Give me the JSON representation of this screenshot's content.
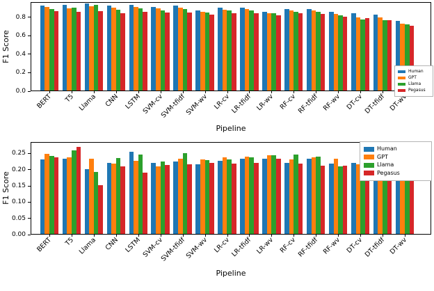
{
  "figure": {
    "background": "#ffffff"
  },
  "series_colors": {
    "Human": "#1f77b4",
    "GPT": "#ff7f0e",
    "Llama": "#2ca02c",
    "Pegasus": "#d62728"
  },
  "chart_data": [
    {
      "type": "bar",
      "title": "",
      "xlabel": "Pipeline",
      "ylabel": "F1 Score",
      "ylim": [
        0,
        0.962
      ],
      "grid": false,
      "legend_position": "lower right",
      "yticks": [
        0.0,
        0.2,
        0.4,
        0.6,
        0.8
      ],
      "ytick_labels": [
        "0.0",
        "0.2",
        "0.4",
        "0.6",
        "0.8"
      ],
      "categories": [
        "BERT",
        "T5",
        "Llama",
        "CNN",
        "LSTM",
        "SVM-cv",
        "SVM-tfidf",
        "SVM-wv",
        "LR-cv",
        "LR-tfidf",
        "LR-wv",
        "RF-cv",
        "RF-tfidf",
        "RF-wv",
        "DT-cv",
        "DT-tfidf",
        "DT-wv"
      ],
      "series": [
        {
          "name": "Human",
          "color": "#1f77b4",
          "values": [
            0.932,
            0.94,
            0.952,
            0.928,
            0.936,
            0.92,
            0.928,
            0.875,
            0.912,
            0.912,
            0.862,
            0.89,
            0.89,
            0.864,
            0.849,
            0.836,
            0.76
          ]
        },
        {
          "name": "GPT",
          "color": "#ff7f0e",
          "values": [
            0.917,
            0.902,
            0.922,
            0.91,
            0.92,
            0.899,
            0.906,
            0.862,
            0.885,
            0.893,
            0.85,
            0.876,
            0.876,
            0.841,
            0.8,
            0.8,
            0.735
          ]
        },
        {
          "name": "Llama",
          "color": "#2ca02c",
          "values": [
            0.897,
            0.912,
            0.936,
            0.889,
            0.9,
            0.876,
            0.892,
            0.852,
            0.878,
            0.878,
            0.851,
            0.866,
            0.861,
            0.826,
            0.78,
            0.775,
            0.724
          ]
        },
        {
          "name": "Pegasus",
          "color": "#d62728",
          "values": [
            0.867,
            0.86,
            0.874,
            0.849,
            0.866,
            0.855,
            0.858,
            0.834,
            0.845,
            0.844,
            0.822,
            0.844,
            0.841,
            0.81,
            0.795,
            0.772,
            0.71
          ]
        }
      ]
    },
    {
      "type": "bar",
      "title": "",
      "xlabel": "Pipeline",
      "ylabel": "F1 Score",
      "ylim": [
        0,
        0.285
      ],
      "grid": false,
      "legend_position": "upper right",
      "yticks": [
        0.0,
        0.05,
        0.1,
        0.15,
        0.2,
        0.25
      ],
      "ytick_labels": [
        "0.00",
        "0.05",
        "0.10",
        "0.15",
        "0.20",
        "0.25"
      ],
      "categories": [
        "BERT",
        "T5",
        "Llama",
        "CNN",
        "LSTM",
        "SVM-cv",
        "SVM-tfidf",
        "SVM-wv",
        "LR-cv",
        "LR-tfidf",
        "LR-wv",
        "RF-cv",
        "RF-tfidf",
        "RF-wv",
        "DT-cv",
        "DT-tfidf",
        "DT-wv"
      ],
      "series": [
        {
          "name": "Human",
          "color": "#1f77b4",
          "values": [
            0.232,
            0.236,
            0.202,
            0.223,
            0.257,
            0.221,
            0.226,
            0.218,
            0.228,
            0.235,
            0.236,
            0.222,
            0.235,
            0.22,
            0.222,
            0.234,
            0.185
          ]
        },
        {
          "name": "GPT",
          "color": "#ff7f0e",
          "values": [
            0.25,
            0.24,
            0.236,
            0.219,
            0.229,
            0.21,
            0.234,
            0.233,
            0.24,
            0.242,
            0.245,
            0.233,
            0.24,
            0.235,
            0.217,
            0.197,
            0.181
          ]
        },
        {
          "name": "Llama",
          "color": "#2ca02c",
          "values": [
            0.243,
            0.261,
            0.194,
            0.237,
            0.247,
            0.227,
            0.252,
            0.231,
            0.232,
            0.239,
            0.246,
            0.248,
            0.241,
            0.212,
            0.211,
            0.206,
            0.194
          ]
        },
        {
          "name": "Pegasus",
          "color": "#d62728",
          "values": [
            0.239,
            0.271,
            0.153,
            0.21,
            0.192,
            0.216,
            0.218,
            0.222,
            0.22,
            0.221,
            0.236,
            0.22,
            0.214,
            0.214,
            0.21,
            0.206,
            0.189
          ]
        }
      ]
    }
  ]
}
